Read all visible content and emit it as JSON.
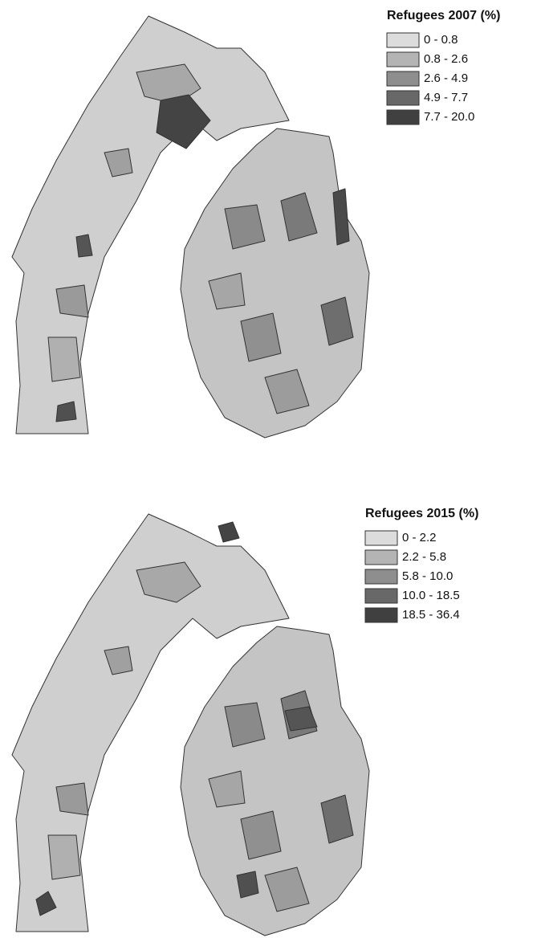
{
  "maps": [
    {
      "legend": {
        "title": "Refugees 2007 (%)",
        "items": [
          {
            "label": "0 - 0.8",
            "color": "#dcdcdc"
          },
          {
            "label": "0.8 - 2.6",
            "color": "#b4b4b4"
          },
          {
            "label": "2.6 - 4.9",
            "color": "#8e8e8e"
          },
          {
            "label": "4.9 - 7.7",
            "color": "#686868"
          },
          {
            "label": "7.7 - 20.0",
            "color": "#404040"
          }
        ]
      }
    },
    {
      "legend": {
        "title": "Refugees 2015 (%)",
        "items": [
          {
            "label": "0 - 2.2",
            "color": "#dcdcdc"
          },
          {
            "label": "2.2 - 5.8",
            "color": "#b4b4b4"
          },
          {
            "label": "5.8 - 10.0",
            "color": "#8e8e8e"
          },
          {
            "label": "10.0 - 18.5",
            "color": "#686868"
          },
          {
            "label": "18.5 - 36.4",
            "color": "#404040"
          }
        ]
      }
    }
  ]
}
